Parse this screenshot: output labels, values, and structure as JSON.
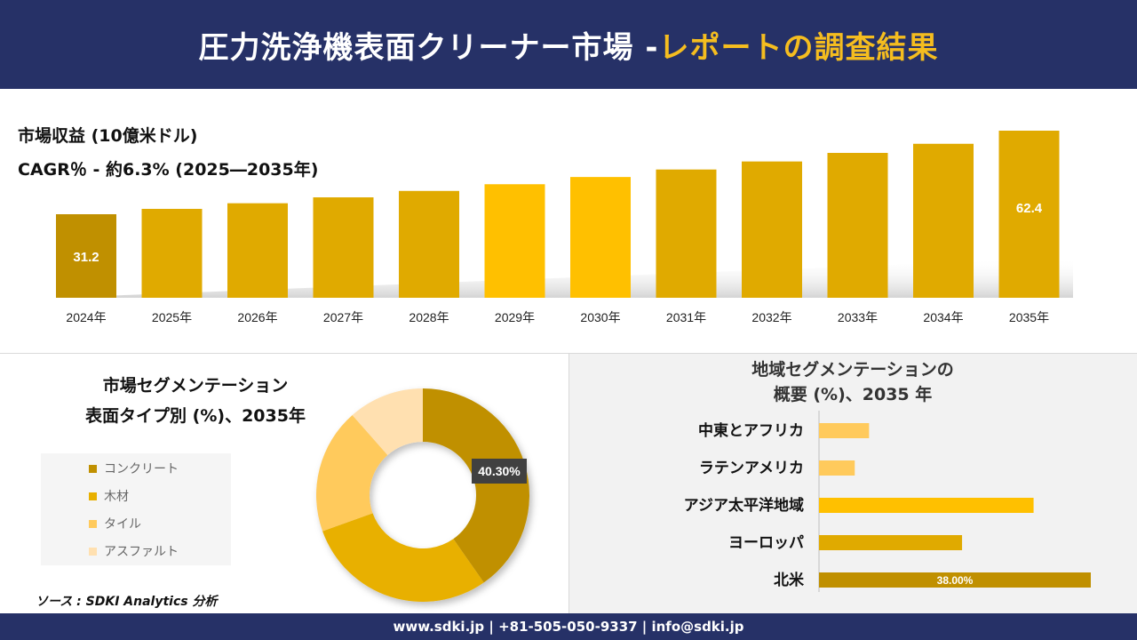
{
  "header": {
    "title_main": "圧力洗浄機表面クリーナー市場 -",
    "title_accent": "レポートの調査結果"
  },
  "top_chart_labels": {
    "revenue_label": "市場収益 (10億米ドル)",
    "cagr_label": "CAGR％ - 約6.3% (2025―2035年)"
  },
  "segment_panel": {
    "title_line1": "市場セグメンテーション",
    "title_line2": "表面タイプ別 (%)、2035年"
  },
  "region_panel": {
    "title_line1": "地域セグメンテーションの",
    "title_line2": "概要 (%)、2035 年"
  },
  "source": "ソース : SDKI Analytics 分析",
  "footer": "www.sdki.jp | +81-505-050-9337 | info@sdki.jp",
  "colors": {
    "navy": "#263167",
    "accent": "#f5bd1f",
    "gold_dark": "#c09000",
    "gold_mid": "#e0aa00",
    "gold_bright": "#ffc000",
    "gold_light": "#ffca5c",
    "gold_pale": "#ffe0b0"
  },
  "chart_data": [
    {
      "type": "bar",
      "categories": [
        "2024年",
        "2025年",
        "2026年",
        "2027年",
        "2028年",
        "2029年",
        "2030年",
        "2031年",
        "2032年",
        "2033年",
        "2034年",
        "2035年"
      ],
      "values": [
        31.2,
        33.2,
        35.3,
        37.5,
        39.9,
        42.4,
        45.1,
        47.9,
        50.9,
        54.1,
        57.5,
        62.4
      ],
      "data_labels": {
        "0": "31.2",
        "11": "62.4"
      },
      "ylim": [
        0,
        64
      ]
    },
    {
      "type": "pie",
      "style": "donut",
      "labels": [
        "コンクリート",
        "木材",
        "タイル",
        "アスファルト"
      ],
      "values": [
        40.3,
        29.2,
        19.0,
        11.5
      ],
      "data_labels": {
        "0": "40.30%"
      },
      "colors": [
        "#c09000",
        "#e8b000",
        "#ffca5c",
        "#ffe0b0"
      ],
      "legend": "left"
    },
    {
      "type": "bar",
      "orientation": "horizontal",
      "categories": [
        "中東とアフリカ",
        "ラテンアメリカ",
        "アジア太平洋地域",
        "ヨーロッパ",
        "北米"
      ],
      "values": [
        7.0,
        5.0,
        30.0,
        20.0,
        38.0
      ],
      "data_labels": {
        "4": "38.00%"
      },
      "xlim": [
        0,
        38
      ]
    }
  ]
}
